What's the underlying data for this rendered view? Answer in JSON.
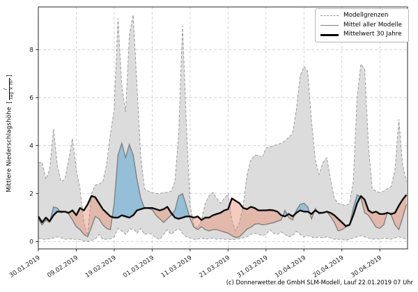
{
  "caption": "(c) Donnerwetter.de GmbH SLM-Modell, Lauf 22.01.2019 07 Uhr",
  "chart_data": {
    "type": "line",
    "title": "",
    "xlabel": "",
    "ylabel": "Mittlere Niederschlagshöhe",
    "ylabel_unit": {
      "numerator": "l",
      "denominator": "Tag × m²"
    },
    "grid": true,
    "legend_position": "top-right",
    "ylim": [
      -0.3,
      9.8
    ],
    "yticks": [
      0,
      2,
      4,
      6,
      8
    ],
    "x_tick_labels": [
      "30.01.2019",
      "09.02.2019",
      "19.02.2019",
      "01.03.2019",
      "11.03.2019",
      "21.03.2019",
      "31.03.2019",
      "10.04.2019",
      "20.04.2019",
      "30.04.2019"
    ],
    "x_tick_days": [
      0,
      10,
      20,
      30,
      40,
      50,
      60,
      70,
      80,
      90
    ],
    "x_total_days": 97.3,
    "legend_entries": [
      {
        "label": "Modellgrenzen",
        "style": "dashed",
        "color": "#9a9a9a"
      },
      {
        "label": "Mittel aller Modelle",
        "style": "solid",
        "color": "#7f7f7f"
      },
      {
        "label": "Mittelwert 30 Jahre",
        "style": "thick",
        "color": "#000000"
      }
    ],
    "fills": {
      "envelope_color": "#dcdcdc",
      "above_normal_color": "rgba(110,175,215,0.65)",
      "below_normal_color": "rgba(233,140,110,0.45)"
    },
    "series": [
      {
        "name": "Modellgrenze oben",
        "role": "upper_bound",
        "style": "dashed",
        "color": "#9a9a9a",
        "values": [
          3.3,
          3.3,
          2.6,
          3.0,
          4.7,
          3.2,
          2.5,
          2.6,
          3.4,
          4.3,
          3.0,
          2.2,
          0.8,
          0.25,
          2.0,
          2.35,
          2.4,
          2.5,
          3.2,
          4.5,
          5.5,
          9.3,
          6.5,
          5.4,
          8.6,
          9.45,
          6.5,
          3.5,
          2.2,
          2.1,
          2.05,
          2.0,
          2.0,
          2.05,
          2.05,
          2.1,
          2.5,
          4.5,
          9.0,
          5.0,
          1.5,
          0.7,
          0.55,
          0.9,
          1.6,
          1.9,
          2.05,
          1.8,
          1.6,
          1.8,
          2.0,
          0.9,
          0.45,
          0.8,
          1.5,
          2.8,
          3.4,
          3.6,
          3.6,
          3.5,
          3.9,
          3.95,
          4.0,
          4.05,
          4.1,
          4.2,
          4.35,
          4.5,
          5.5,
          6.9,
          7.3,
          7.1,
          5.0,
          3.4,
          2.8,
          3.3,
          3.5,
          2.6,
          1.8,
          1.6,
          1.55,
          1.5,
          1.6,
          2.5,
          6.0,
          7.4,
          7.2,
          4.0,
          2.2,
          2.1,
          2.05,
          2.1,
          2.2,
          2.3,
          3.0,
          5.1,
          3.2,
          2.5
        ]
      },
      {
        "name": "Modellgrenze unten",
        "role": "lower_bound",
        "style": "dashed",
        "color": "#9a9a9a",
        "values": [
          0.15,
          0.1,
          0.1,
          0.12,
          0.15,
          0.2,
          0.15,
          0.1,
          0.12,
          0.1,
          0.1,
          0.08,
          0.02,
          0.0,
          0.05,
          0.1,
          0.3,
          0.1,
          0.1,
          0.12,
          0.2,
          0.55,
          0.45,
          0.3,
          0.5,
          0.55,
          0.35,
          0.55,
          0.3,
          0.35,
          0.3,
          0.15,
          0.1,
          0.3,
          0.5,
          0.3,
          0.45,
          0.55,
          0.35,
          0.2,
          0.15,
          0.1,
          0.1,
          0.15,
          0.1,
          0.12,
          0.15,
          0.1,
          0.12,
          0.1,
          0.1,
          0.08,
          0.1,
          0.12,
          0.15,
          0.2,
          0.3,
          0.35,
          0.3,
          0.25,
          0.3,
          0.5,
          0.35,
          0.3,
          0.4,
          0.3,
          0.2,
          0.25,
          0.43,
          0.3,
          0.2,
          0.25,
          0.2,
          0.15,
          0.2,
          0.15,
          0.2,
          0.15,
          0.1,
          0.1,
          0.1,
          0.05,
          0.1,
          0.15,
          0.2,
          0.25,
          0.2,
          0.15,
          0.1,
          0.12,
          0.1,
          0.15,
          0.12,
          0.1,
          0.15,
          0.2,
          0.15,
          0.1
        ]
      },
      {
        "name": "Mittel aller Modelle",
        "role": "model_mean",
        "style": "solid",
        "color": "#7f7f7f",
        "values": [
          0.95,
          0.7,
          0.9,
          0.8,
          1.45,
          1.4,
          1.2,
          1.25,
          1.15,
          0.9,
          0.62,
          0.5,
          0.3,
          0.2,
          0.6,
          1.05,
          0.95,
          0.7,
          0.55,
          0.5,
          1.6,
          3.6,
          4.1,
          3.5,
          4.05,
          3.6,
          2.6,
          1.8,
          1.38,
          1.38,
          1.33,
          1.1,
          0.95,
          0.8,
          0.95,
          1.1,
          1.3,
          1.9,
          2.0,
          1.5,
          0.95,
          0.6,
          0.5,
          0.62,
          0.5,
          0.45,
          0.5,
          0.5,
          0.45,
          0.4,
          0.35,
          0.25,
          0.17,
          0.2,
          0.35,
          0.52,
          0.6,
          0.72,
          0.75,
          0.7,
          0.72,
          0.75,
          0.79,
          0.85,
          0.9,
          1.3,
          1.0,
          0.9,
          1.3,
          1.55,
          1.6,
          1.45,
          0.95,
          1.38,
          1.15,
          1.2,
          1.25,
          1.05,
          0.8,
          0.45,
          0.5,
          0.6,
          0.68,
          1.4,
          1.95,
          1.85,
          1.2,
          1.1,
          0.85,
          0.6,
          0.55,
          0.7,
          1.22,
          1.1,
          0.7,
          0.5,
          1.0,
          1.55
        ]
      },
      {
        "name": "Mittelwert 30 Jahre",
        "role": "climate_mean",
        "style": "thick",
        "color": "#0a0a0a",
        "values": [
          1.05,
          0.8,
          1.0,
          0.85,
          1.1,
          1.25,
          1.25,
          1.25,
          1.2,
          1.3,
          1.1,
          1.4,
          1.3,
          1.55,
          1.9,
          1.85,
          1.6,
          1.35,
          1.2,
          1.05,
          1.0,
          1.0,
          1.1,
          1.05,
          1.0,
          1.1,
          1.3,
          1.35,
          1.4,
          1.4,
          1.4,
          1.35,
          1.3,
          1.35,
          1.45,
          1.2,
          1.0,
          0.95,
          1.0,
          1.05,
          1.05,
          1.0,
          1.05,
          0.9,
          1.0,
          1.0,
          1.1,
          1.15,
          1.2,
          1.3,
          1.35,
          1.8,
          1.7,
          1.6,
          1.4,
          1.35,
          1.45,
          1.4,
          1.3,
          1.3,
          1.3,
          1.32,
          1.3,
          1.25,
          1.1,
          1.05,
          1.15,
          1.05,
          1.2,
          1.3,
          1.25,
          1.25,
          1.15,
          1.3,
          1.2,
          1.2,
          1.25,
          1.2,
          1.1,
          0.95,
          0.8,
          0.65,
          0.7,
          1.1,
          1.6,
          1.9,
          1.75,
          1.3,
          1.2,
          1.25,
          1.15,
          1.15,
          1.2,
          1.15,
          1.2,
          1.5,
          1.75,
          1.95
        ]
      }
    ]
  }
}
